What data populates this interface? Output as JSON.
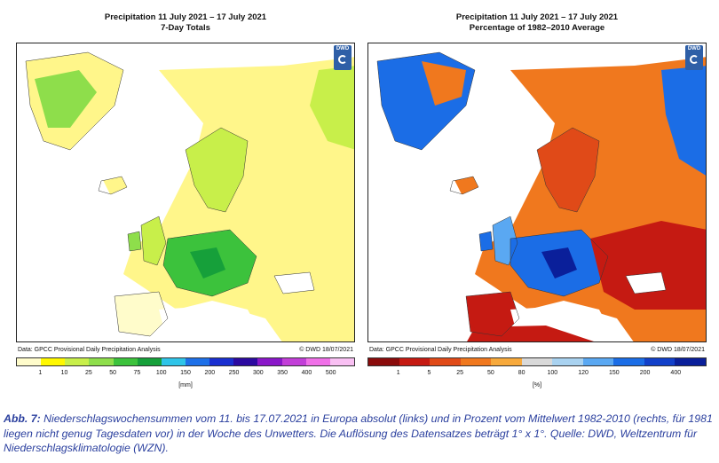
{
  "left_panel": {
    "title_line1": "Precipitation 11 July 2021 – 17 July 2021",
    "title_line2": "7-Day Totals",
    "source": "Data: GPCC Provisional Daily Precipitation Analysis",
    "copyright": "© DWD 18/07/2021",
    "logo_text": "DWD",
    "unit": "[mm]",
    "ticks": [
      "1",
      "10",
      "25",
      "50",
      "75",
      "100",
      "150",
      "200",
      "250",
      "300",
      "350",
      "400",
      "500"
    ],
    "colors": [
      "#fffccb",
      "#fff800",
      "#c8ef4a",
      "#8ede4b",
      "#3cc23c",
      "#16a03a",
      "#2fc4e8",
      "#1e70e8",
      "#1a2fd0",
      "#2c0aa0",
      "#8a17c9",
      "#c23fd8",
      "#f070e8",
      "#f9c0f3"
    ]
  },
  "right_panel": {
    "title_line1": "Precipitation 11 July 2021 – 17 July 2021",
    "title_line2": "Percentage of 1982–2010 Average",
    "source": "Data: GPCC Provisional Daily Precipitation Analysis",
    "copyright": "© DWD 18/07/2021",
    "logo_text": "DWD",
    "unit": "[%]",
    "ticks": [
      "1",
      "5",
      "25",
      "50",
      "80",
      "100",
      "120",
      "150",
      "200",
      "400"
    ],
    "colors": [
      "#8a0b0b",
      "#c51a12",
      "#e04a18",
      "#f0781e",
      "#f7a93b",
      "#d9d9d9",
      "#a9d2f0",
      "#5aa8f2",
      "#1b6de6",
      "#1240c9",
      "#0a1f9a"
    ]
  },
  "caption": {
    "label": "Abb. 7:",
    "text": " Niederschlagswochensummen vom 11. bis 17.07.2021 in Europa absolut (links) und in Prozent vom Mittelwert 1982-2010 (rechts, für 1981 liegen nicht genug Tagesdaten vor) in der Woche des Unwetters. Die Auflösung des Datensatzes beträgt 1° x 1°. Quelle: DWD, Weltzentrum für Niederschlagsklimatologie (WZN)."
  }
}
